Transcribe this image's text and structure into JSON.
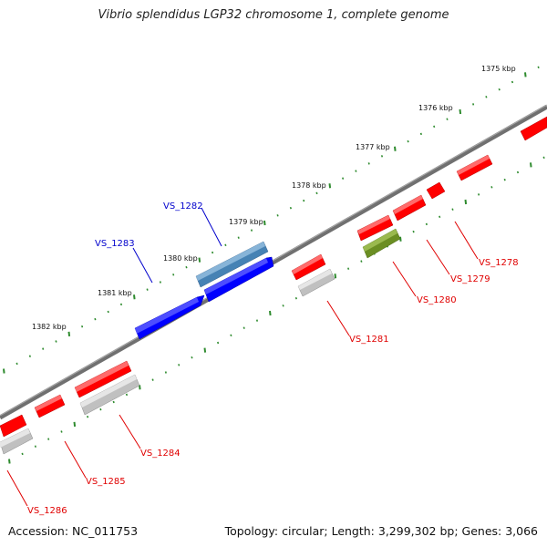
{
  "title": "Vibrio splendidus LGP32 chromosome 1, complete genome",
  "accession": "Accession: NC_011753",
  "topology": "Topology: circular; Length: 3,299,302 bp; Genes: 3,066",
  "colors": {
    "backbone": "#808080",
    "ticks": "#2e8b2e",
    "red_gene": "#ff0000",
    "grey_gene": "#c0c0c0",
    "blue_gene": "#0000ff",
    "steelblue_gene": "#4682b4",
    "olive_gene": "#6b8e23",
    "label_red": "#e00000",
    "label_blue": "#0000cc"
  },
  "scale_labels": [
    "1375 kbp",
    "1376 kbp",
    "1377 kbp",
    "1378 kbp",
    "1379 kbp",
    "1380 kbp",
    "1381 kbp",
    "1382 kbp"
  ],
  "gene_labels": {
    "forward": [
      "VS_1282",
      "VS_1283"
    ],
    "reverse": [
      "VS_1278",
      "VS_1279",
      "VS_1280",
      "VS_1281",
      "VS_1284",
      "VS_1285",
      "VS_1286"
    ]
  }
}
